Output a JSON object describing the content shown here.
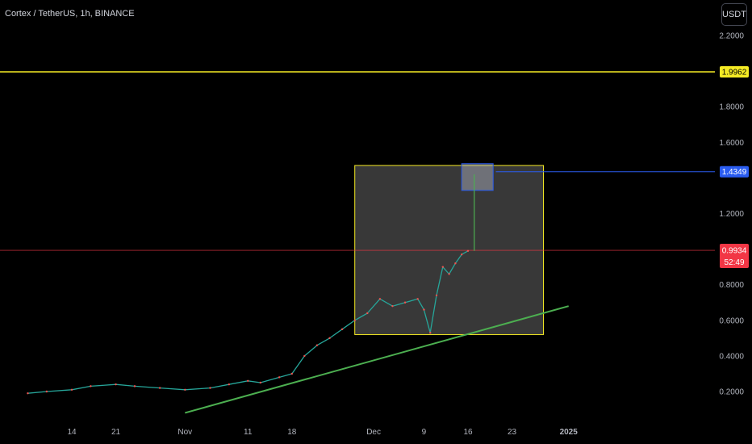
{
  "header": {
    "title": "Cortex / TetherUS, 1h, BINANCE",
    "currency": "USDT"
  },
  "chart_data": {
    "type": "line",
    "title": "Cortex / TetherUS, 1h, BINANCE",
    "ylim": [
      0.05,
      2.3
    ],
    "y_ticks": [
      "2.2000",
      "1.8000",
      "1.6000",
      "1.2000",
      "0.8000",
      "0.6000",
      "0.4000",
      "0.2000"
    ],
    "y_tick_values": [
      2.2,
      1.8,
      1.6,
      1.2,
      0.8,
      0.6,
      0.4,
      0.2
    ],
    "x_ticks": [
      "14",
      "21",
      "Nov",
      "11",
      "18",
      "Dec",
      "9",
      "16",
      "23",
      "2025"
    ],
    "x_tick_dates": [
      "2024-10-14",
      "2024-10-21",
      "2024-11-01",
      "2024-11-11",
      "2024-11-18",
      "2024-12-01",
      "2024-12-09",
      "2024-12-16",
      "2024-12-23",
      "2025-01-01"
    ],
    "x_range": [
      "2024-10-07",
      "2025-01-11"
    ],
    "series": [
      {
        "x": [
          "2024-10-07",
          "2024-10-10",
          "2024-10-14",
          "2024-10-17",
          "2024-10-21",
          "2024-10-24",
          "2024-10-28",
          "2024-11-01",
          "2024-11-05",
          "2024-11-08",
          "2024-11-11",
          "2024-11-13",
          "2024-11-16",
          "2024-11-18",
          "2024-11-20",
          "2024-11-22",
          "2024-11-24",
          "2024-11-26",
          "2024-11-28",
          "2024-11-30",
          "2024-12-02",
          "2024-12-04",
          "2024-12-06",
          "2024-12-08",
          "2024-12-09",
          "2024-12-10",
          "2024-12-11",
          "2024-12-12",
          "2024-12-13",
          "2024-12-14",
          "2024-12-15",
          "2024-12-16"
        ],
        "values": [
          0.19,
          0.2,
          0.21,
          0.23,
          0.24,
          0.23,
          0.22,
          0.21,
          0.22,
          0.24,
          0.26,
          0.25,
          0.28,
          0.3,
          0.4,
          0.46,
          0.5,
          0.55,
          0.6,
          0.64,
          0.72,
          0.68,
          0.7,
          0.72,
          0.66,
          0.53,
          0.74,
          0.9,
          0.86,
          0.92,
          0.97,
          0.99
        ]
      }
    ],
    "levels": [
      {
        "name": "resistance",
        "value": 1.9962,
        "label": "1.9962",
        "color": "#f5eb24"
      },
      {
        "name": "target",
        "value": 1.4349,
        "label": "1.4349",
        "color": "#2a5cf0"
      },
      {
        "name": "last-price",
        "value": 0.9934,
        "label": "0.9934",
        "sub_label": "52:49",
        "color": "#f23645"
      }
    ],
    "trendline": {
      "color": "#4caf50",
      "from": {
        "x": "2024-11-01",
        "y": 0.08
      },
      "to": {
        "x": "2025-01-01",
        "y": 0.68
      }
    },
    "range_box": {
      "color": "#f5eb24",
      "x_from": "2024-11-28",
      "x_to": "2024-12-28",
      "y_from": 0.52,
      "y_to": 1.47
    },
    "target_box": {
      "color": "#2a5cf0",
      "x_from": "2024-12-15",
      "x_to": "2024-12-20",
      "y_from": 1.33,
      "y_to": 1.48
    },
    "projection": {
      "color": "#4caf50",
      "x": "2024-12-17",
      "y_from": 0.99,
      "y_to": 1.42
    },
    "grid": false,
    "legend": "none"
  }
}
